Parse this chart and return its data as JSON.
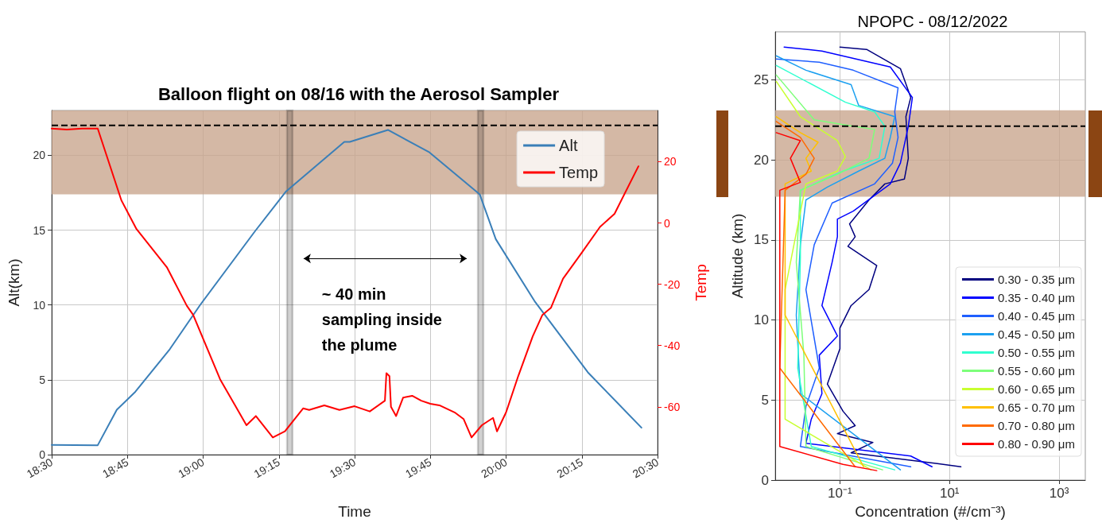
{
  "chart_data": [
    {
      "type": "line",
      "title": "Balloon flight on 08/16 with the Aerosol Sampler",
      "xlabel": "Time",
      "ylabel": "Alt(km)",
      "y2label": "Temp",
      "annotations": [
        "~ 40 min sampling inside the plume"
      ],
      "xlim": [
        18.5,
        20.5
      ],
      "xticks": [
        {
          "value": 18.5,
          "label": "18:30"
        },
        {
          "value": 18.75,
          "label": "18:45"
        },
        {
          "value": 19,
          "label": "19:00"
        },
        {
          "value": 19.25,
          "label": "19:15"
        },
        {
          "value": 19.5,
          "label": "19:30"
        },
        {
          "value": 19.75,
          "label": "19:45"
        },
        {
          "value": 20,
          "label": "20:00"
        },
        {
          "value": 20.25,
          "label": "20:15"
        },
        {
          "value": 20.5,
          "label": "20:30"
        }
      ],
      "ylim": [
        0,
        23
      ],
      "yticks": [
        0,
        5,
        10,
        15,
        20
      ],
      "y2lim": [
        -75.6,
        36.7
      ],
      "y2ticks": [
        -60,
        -40,
        -20,
        0,
        20
      ],
      "grid": true,
      "legend": "top right",
      "series": [
        {
          "name": "Alt",
          "color": "#3a7fb8",
          "x": [
            18.5,
            18.652,
            18.715,
            18.776,
            18.89,
            18.99,
            19.17,
            19.274,
            19.466,
            19.484,
            19.61,
            19.747,
            19.913,
            19.966,
            20.096,
            20.27,
            20.447
          ],
          "values": [
            0.65,
            0.63,
            3.0,
            4.2,
            7.05,
            10,
            14.9,
            17.6,
            20.9,
            20.9,
            21.7,
            20.2,
            17.4,
            14.4,
            10.2,
            5.5,
            1.8
          ]
        },
        {
          "name": "Temp",
          "color": "#ff0000",
          "axis": "y2",
          "x": [
            18.5,
            18.55,
            18.6,
            18.652,
            18.73,
            18.78,
            18.88,
            18.946,
            18.967,
            19.056,
            19.143,
            19.174,
            19.23,
            19.27,
            19.33,
            19.35,
            19.4,
            19.45,
            19.5,
            19.55,
            19.6,
            19.605,
            19.615,
            19.62,
            19.637,
            19.66,
            19.69,
            19.72,
            19.75,
            19.78,
            19.83,
            19.86,
            19.886,
            19.92,
            19.957,
            19.97,
            20.0,
            20.04,
            20.088,
            20.12,
            20.148,
            20.188,
            20.25,
            20.31,
            20.358,
            20.437
          ],
          "values": [
            30.8,
            30.5,
            30.8,
            30.8,
            7.4,
            -2,
            -14.4,
            -27,
            -30,
            -51,
            -66,
            -63,
            -70,
            -68,
            -60.5,
            -61,
            -59.5,
            -61,
            -59.8,
            -61.5,
            -58,
            -49,
            -50,
            -60,
            -63,
            -57,
            -56.4,
            -58,
            -59,
            -59.5,
            -61.8,
            -64,
            -70,
            -66,
            -63.6,
            -68,
            -61.8,
            -50,
            -37,
            -30,
            -27.7,
            -18.2,
            -9.7,
            -1.3,
            3,
            18.5
          ]
        }
      ],
      "bands": [
        {
          "axis": "y",
          "from": 17.4,
          "to": 23,
          "color": "#c8a48c"
        },
        {
          "axis": "x",
          "from": 19.277,
          "to": 19.295,
          "color": "#000000"
        },
        {
          "axis": "x",
          "from": 19.907,
          "to": 19.925,
          "color": "#000000"
        }
      ],
      "ref_lines": [
        {
          "axis": "y",
          "value": 22,
          "color": "#000000",
          "line_style": "dashed"
        }
      ]
    },
    {
      "type": "line",
      "title": "NPOPC - 08/12/2022",
      "xlabel": "Concentration (#/cm⁻³)",
      "ylabel": "Altitude (km)",
      "log": "x",
      "xlim": [
        0.0066,
        3000
      ],
      "xticks": [
        {
          "value": 0.1,
          "label": "10⁻¹"
        },
        {
          "value": 10,
          "label": "10¹"
        },
        {
          "value": 1000,
          "label": "10³"
        }
      ],
      "ylim": [
        0,
        28
      ],
      "yticks": [
        0,
        5,
        10,
        15,
        20,
        25
      ],
      "grid": true,
      "legend": "bottom right",
      "series": [
        {
          "name": "0.30 - 0.35 μm",
          "color": "#00007f",
          "x": [
            0.1,
            0.307,
            1.27,
            1.96,
            1.6,
            1.77,
            1.5,
            0.66,
            0.34,
            0.15,
            0.19,
            0.14,
            0.47,
            0.34,
            0.16,
            0.1,
            0.1,
            0.059,
            0.114,
            0.19,
            0.09,
            0.4,
            0.16,
            6.0,
            16.1
          ],
          "values": [
            27.05,
            26.9,
            25.7,
            23.9,
            22.7,
            20.1,
            18.8,
            18.5,
            17.5,
            16.0,
            15.2,
            14.6,
            13.4,
            11.9,
            10.9,
            9.5,
            8.2,
            6.0,
            4.3,
            3.4,
            2.9,
            2.35,
            1.7,
            1.03,
            0.83
          ]
        },
        {
          "name": "0.35 - 0.40 μm",
          "color": "#0000ff",
          "x": [
            0.0096,
            0.047,
            0.83,
            2.1,
            1.77,
            1.27,
            0.83,
            0.175,
            0.09,
            0.09,
            0.072,
            0.047,
            0.09,
            0.042,
            0.047,
            0.03,
            0.024,
            1.96,
            4.8
          ],
          "values": [
            27.05,
            26.8,
            25.8,
            23.9,
            22.1,
            19.8,
            18.5,
            16.8,
            16.3,
            15.2,
            13.6,
            10.9,
            9.0,
            7.8,
            5.4,
            3.8,
            2.3,
            1.5,
            0.83
          ]
        },
        {
          "name": "0.40 - 0.45 μm",
          "color": "#1f5fff",
          "x": [
            0.0069,
            0.042,
            0.175,
            1.15,
            1.0,
            1.15,
            0.91,
            0.43,
            0.072,
            0.034,
            0.024,
            0.042,
            0.024,
            0.019,
            1.96
          ],
          "values": [
            26.3,
            26.1,
            25.6,
            24.5,
            23.0,
            21.4,
            19.8,
            18.5,
            17.3,
            14.7,
            11.9,
            7.0,
            4.6,
            2.1,
            0.83
          ]
        },
        {
          "name": "0.45 - 0.50 μm",
          "color": "#1ca0f0",
          "x": [
            0.0069,
            0.024,
            0.16,
            0.22,
            1.0,
            0.83,
            0.66,
            0.22,
            0.059,
            0.024,
            0.019,
            0.016,
            0.019,
            1.27
          ],
          "values": [
            26.5,
            25.6,
            24.7,
            23.4,
            22.7,
            21.4,
            20.1,
            19.3,
            18.3,
            17.5,
            14.7,
            10.3,
            5.4,
            0.64
          ]
        },
        {
          "name": "0.50 - 0.55 μm",
          "color": "#30ffd0",
          "x": [
            0.0069,
            0.126,
            0.43,
            0.66,
            0.52,
            0.114,
            0.019,
            0.019,
            0.017,
            0.03,
            1.0
          ],
          "values": [
            25.9,
            23.6,
            23.0,
            22.1,
            20.1,
            19.3,
            18.1,
            13.9,
            7.0,
            2.1,
            0.64
          ]
        },
        {
          "name": "0.55 - 0.60 μm",
          "color": "#7dff7a",
          "x": [
            0.0069,
            0.034,
            0.114,
            0.43,
            0.34,
            0.09,
            0.019,
            0.016,
            0.022,
            0.024,
            0.6
          ],
          "values": [
            25.3,
            22.5,
            22.2,
            21.9,
            20.1,
            19.1,
            18.1,
            13.6,
            7.8,
            2.1,
            0.64
          ]
        },
        {
          "name": "0.60 - 0.65 μm",
          "color": "#c8ff30",
          "x": [
            0.0069,
            0.019,
            0.09,
            0.126,
            0.09,
            0.024,
            0.01,
            0.01,
            0.37
          ],
          "values": [
            24.9,
            22.7,
            21.2,
            20.2,
            19.3,
            18.5,
            11.9,
            3.8,
            0.64
          ]
        },
        {
          "name": "0.65 - 0.70 μm",
          "color": "#ffc000",
          "x": [
            0.0069,
            0.019,
            0.04,
            0.024,
            0.03,
            0.01,
            0.01,
            0.27
          ],
          "values": [
            22.7,
            21.7,
            21.1,
            20.1,
            19.3,
            18.5,
            10.3,
            0.83
          ]
        },
        {
          "name": "0.70 - 0.80 μm",
          "color": "#ff6a00",
          "x": [
            0.0069,
            0.019,
            0.034,
            0.024,
            0.01,
            0.008,
            0.19
          ],
          "values": [
            22.4,
            21.4,
            20.1,
            19.1,
            18.1,
            7.0,
            0.83
          ]
        },
        {
          "name": "0.80 - 0.90 μm",
          "color": "#ff0000",
          "x": [
            0.0069,
            0.019,
            0.0125,
            0.019,
            0.008,
            0.008,
            0.114,
            0.47
          ],
          "values": [
            21.7,
            21.2,
            20.1,
            18.6,
            18.1,
            2.1,
            0.98,
            0.59
          ]
        }
      ],
      "bands": [
        {
          "axis": "y",
          "from": 17.7,
          "to": 23.1,
          "color": "#c8a48c"
        }
      ],
      "ref_lines": [
        {
          "axis": "y",
          "value": 22.1,
          "color": "#000000",
          "line_style": "dashed"
        }
      ]
    }
  ]
}
